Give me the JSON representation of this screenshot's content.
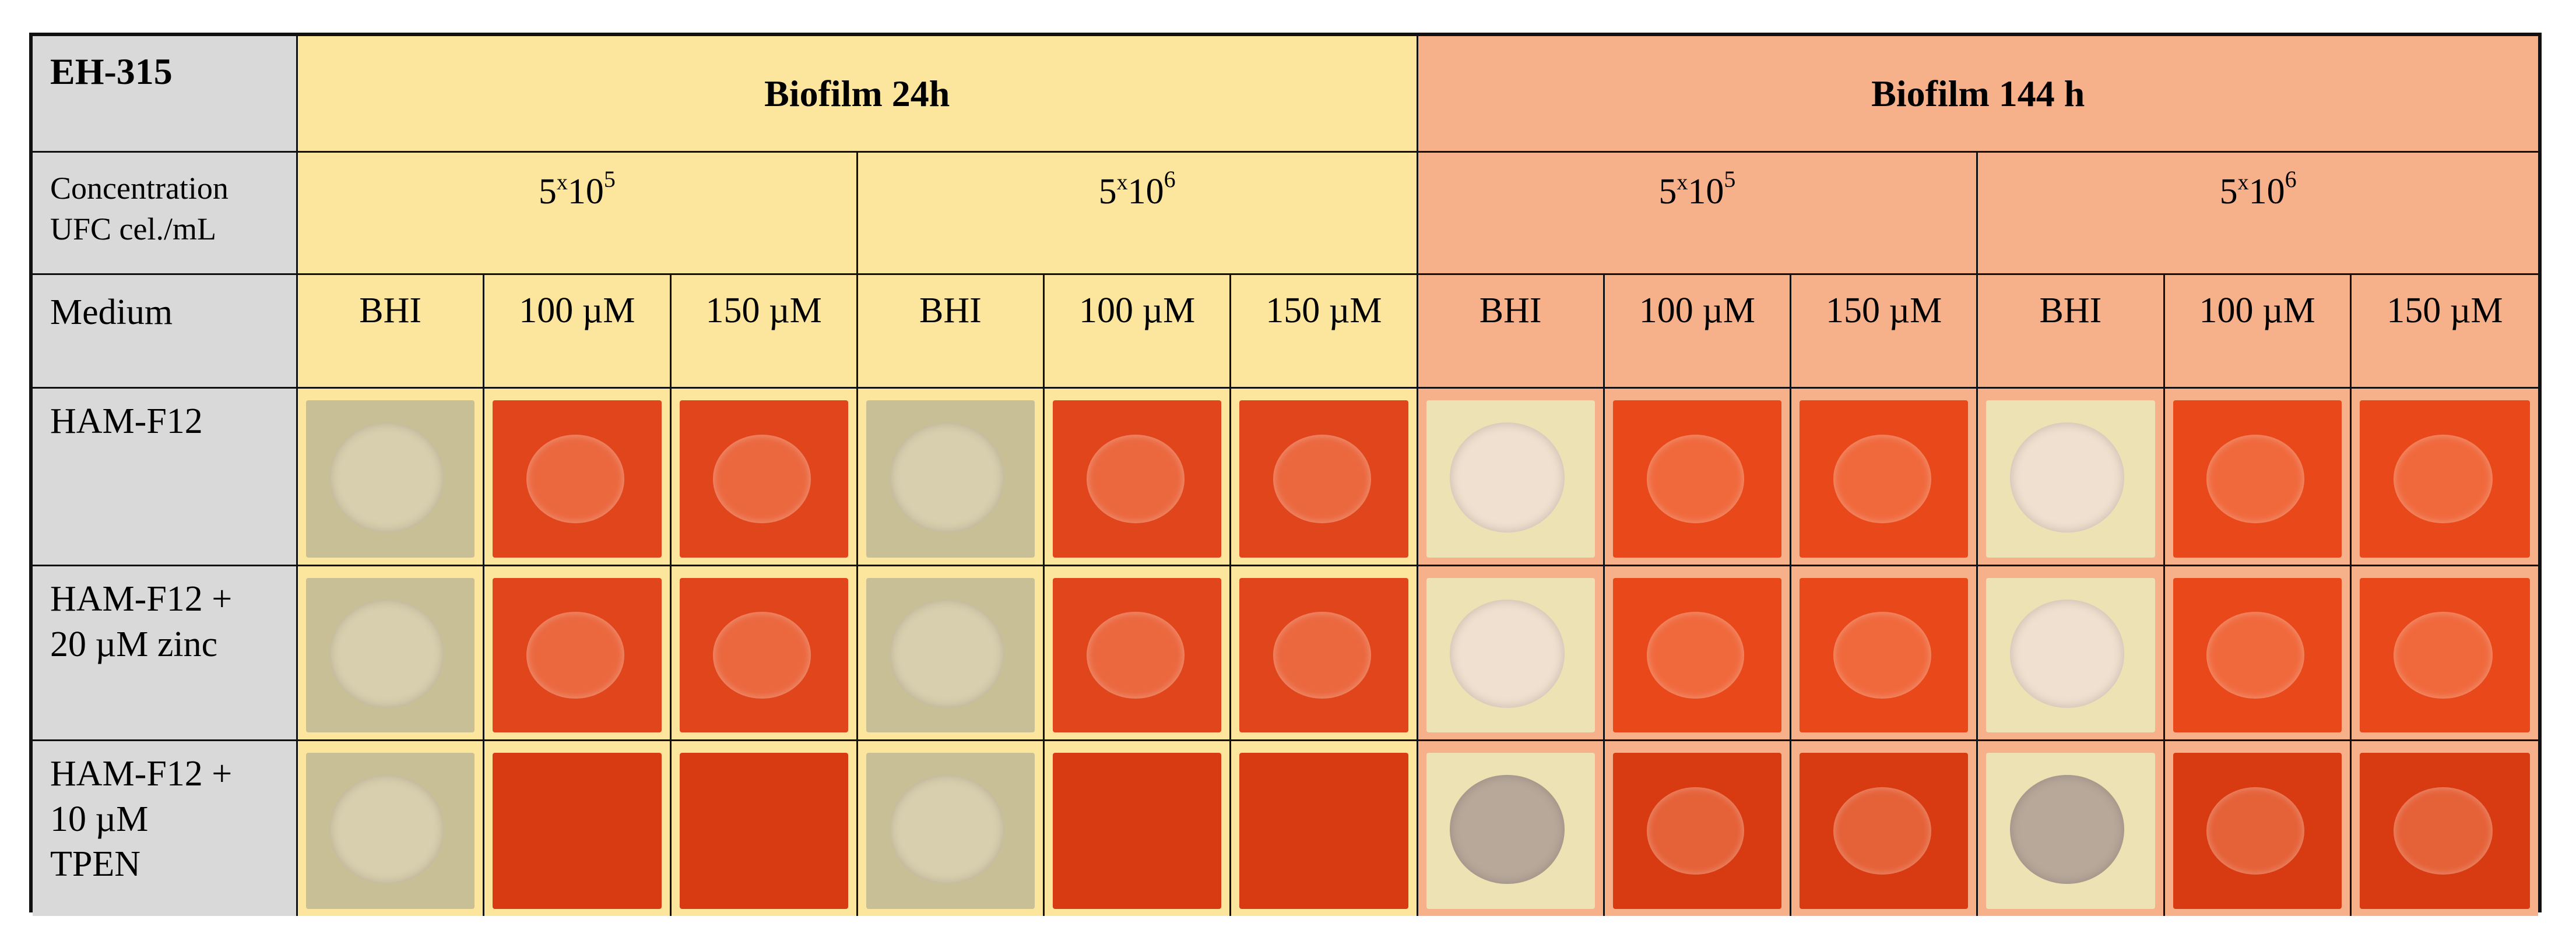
{
  "table": {
    "corner_label": "EH-315",
    "group_headers": [
      "Biofilm 24h",
      "Biofilm 144 h"
    ],
    "concentration_label_line1": "Concentration",
    "concentration_label_line2": "UFC cel./mL",
    "concentrations": [
      {
        "base": "5",
        "x": "x",
        "ten": "10",
        "exp": "5"
      },
      {
        "base": "5",
        "x": "x",
        "ten": "10",
        "exp": "6"
      },
      {
        "base": "5",
        "x": "x",
        "ten": "10",
        "exp": "5"
      },
      {
        "base": "5",
        "x": "x",
        "ten": "10",
        "exp": "6"
      }
    ],
    "medium_label": "Medium",
    "media": [
      "BHI",
      "100 µM",
      "150 µM",
      "BHI",
      "100 µM",
      "150 µM",
      "BHI",
      "100 µM",
      "150 µM",
      "BHI",
      "100 µM",
      "150 µM"
    ],
    "rows": [
      {
        "label_lines": [
          "HAM-F12"
        ]
      },
      {
        "label_lines": [
          "HAM-F12 +",
          "20 µM zinc"
        ]
      },
      {
        "label_lines": [
          "HAM-F12 +",
          "10 µM",
          "TPEN"
        ]
      }
    ]
  },
  "colors": {
    "header_gray": "#d9d9d9",
    "biofilm_24h_yellow": "#fce59c",
    "biofilm_144h_salmon": "#f7b18a",
    "bhi_sample": "#c9bf97",
    "treated_sample": "#e0451c"
  }
}
